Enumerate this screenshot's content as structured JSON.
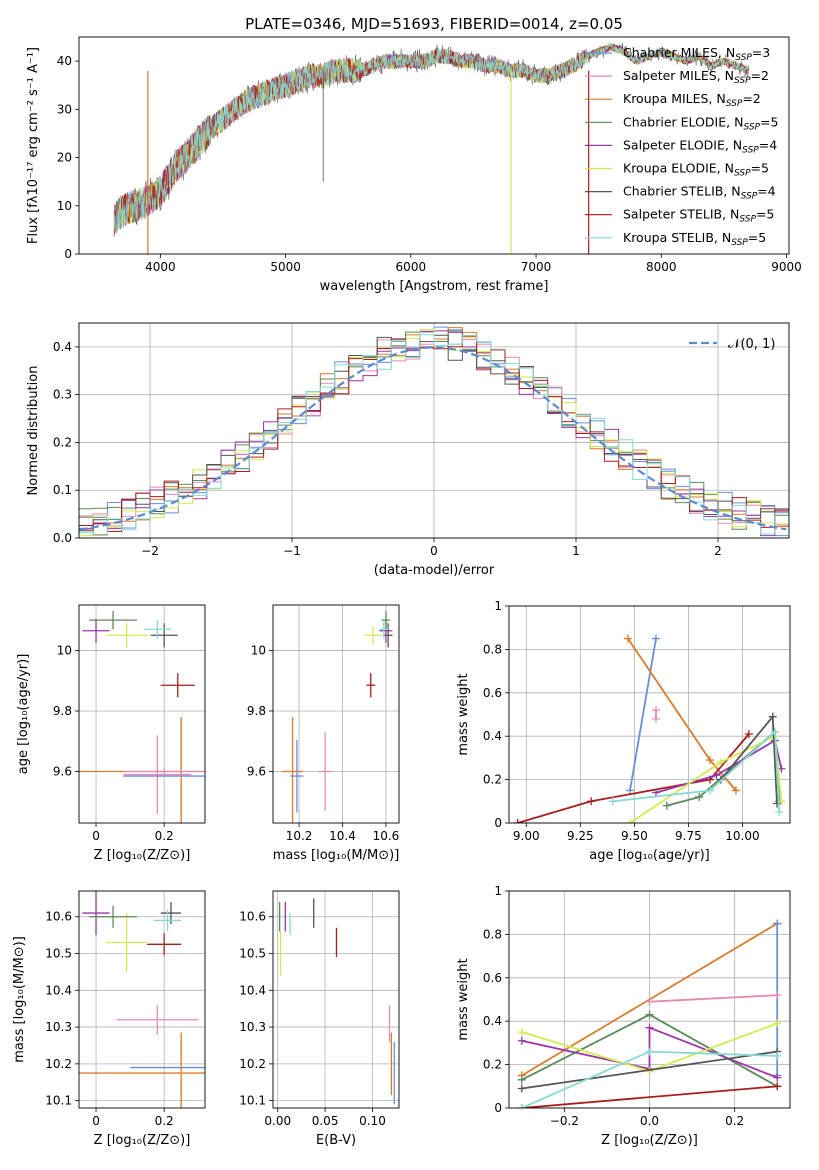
{
  "colors": {
    "chabrier_miles": "#6a8fd8",
    "salpeter_miles": "#e58bb3",
    "kroupa_miles": "#d97b2b",
    "chabrier_elodie": "#5a8a5a",
    "salpeter_elodie": "#9b35a9",
    "kroupa_elodie": "#d3ea4f",
    "chabrier_stelib": "#555555",
    "salpeter_stelib": "#a81d1d",
    "kroupa_stelib": "#86d9d4",
    "normal": "#5b8bd0"
  },
  "chart_data": [
    {
      "id": "spectrum",
      "type": "line",
      "title": "PLATE=0346, MJD=51693, FIBERID=0014, z=0.05",
      "xlabel": "wavelength [Angstrom, rest frame]",
      "ylabel": "Flux [fλ10⁻¹⁷ erg cm⁻² s⁻¹ A⁻¹]",
      "xlim": [
        3350,
        9020
      ],
      "ylim": [
        0,
        45
      ],
      "xticks": [
        4000,
        5000,
        6000,
        7000,
        8000,
        9000
      ],
      "yticks": [
        0,
        10,
        20,
        30,
        40
      ],
      "grid": false,
      "legend": "top-right",
      "x": [
        3630,
        3700,
        3800,
        3900,
        4000,
        4100,
        4200,
        4300,
        4400,
        4500,
        4600,
        4700,
        4800,
        4900,
        5000,
        5100,
        5200,
        5300,
        5400,
        5500,
        5600,
        5700,
        5800,
        5900,
        6000,
        6100,
        6200,
        6300,
        6400,
        6500,
        6600,
        6700,
        6800,
        6900,
        7000,
        7100,
        7200,
        7300,
        7400,
        7500,
        7600,
        7700,
        7800,
        7900,
        8000,
        8100,
        8200,
        8300,
        8400,
        8500,
        8600,
        8700
      ],
      "y": [
        7,
        9,
        10,
        11,
        13,
        17,
        20,
        23,
        26,
        28,
        30,
        32,
        33,
        34,
        35,
        36,
        37,
        37,
        38,
        38,
        38,
        39,
        40,
        40,
        40,
        40,
        41,
        41,
        40,
        40,
        39,
        39,
        38,
        38,
        37,
        37,
        38,
        39,
        41,
        42,
        43,
        42,
        40,
        41,
        42,
        41,
        40,
        41,
        39,
        40,
        39,
        38
      ],
      "series": [
        {
          "name": "Chabrier MILES, N_SSP=3",
          "color_key": "chabrier_miles"
        },
        {
          "name": "Salpeter MILES, N_SSP=2",
          "color_key": "salpeter_miles"
        },
        {
          "name": "Kroupa MILES, N_SSP=2",
          "color_key": "kroupa_miles"
        },
        {
          "name": "Chabrier ELODIE, N_SSP=5",
          "color_key": "chabrier_elodie"
        },
        {
          "name": "Salpeter ELODIE, N_SSP=4",
          "color_key": "salpeter_elodie"
        },
        {
          "name": "Kroupa ELODIE, N_SSP=5",
          "color_key": "kroupa_elodie"
        },
        {
          "name": "Chabrier STELIB, N_SSP=4",
          "color_key": "chabrier_stelib"
        },
        {
          "name": "Salpeter STELIB, N_SSP=5",
          "color_key": "salpeter_stelib"
        },
        {
          "name": "Kroupa STELIB, N_SSP=5",
          "color_key": "kroupa_stelib"
        }
      ],
      "legend_parts": [
        [
          "Chabrier MILES, N",
          "SSP",
          "=3"
        ],
        [
          "Salpeter MILES, N",
          "SSP",
          "=2"
        ],
        [
          "Kroupa MILES, N",
          "SSP",
          "=2"
        ],
        [
          "Chabrier ELODIE, N",
          "SSP",
          "=5"
        ],
        [
          "Salpeter ELODIE, N",
          "SSP",
          "=4"
        ],
        [
          "Kroupa ELODIE, N",
          "SSP",
          "=5"
        ],
        [
          "Chabrier STELIB, N",
          "SSP",
          "=4"
        ],
        [
          "Salpeter STELIB, N",
          "SSP",
          "=5"
        ],
        [
          "Kroupa STELIB, N",
          "SSP",
          "=5"
        ]
      ],
      "drops": [
        {
          "x": 3900,
          "color_key": "kroupa_miles"
        },
        {
          "x": 6800,
          "color_key": "kroupa_elodie"
        },
        {
          "x": 7420,
          "color_key": "salpeter_stelib"
        }
      ]
    },
    {
      "id": "residuals",
      "type": "bar",
      "xlabel": "(data-model)/error",
      "ylabel": "Normed distribution",
      "xlim": [
        -2.5,
        2.5
      ],
      "ylim": [
        0,
        0.45
      ],
      "xticks": [
        -2,
        -1,
        0,
        1,
        2
      ],
      "xtick_labels": [
        "−2",
        "−1",
        "0",
        "1",
        "2"
      ],
      "yticks": [
        0.0,
        0.1,
        0.2,
        0.3,
        0.4
      ],
      "grid": true,
      "legend": "top-right",
      "bin_width": 0.1,
      "bin_start": -2.5,
      "normal_label": "𝒩(0, 1)",
      "series_colors": [
        "chabrier_miles",
        "salpeter_miles",
        "kroupa_miles",
        "chabrier_elodie",
        "salpeter_elodie",
        "kroupa_elodie",
        "chabrier_stelib",
        "salpeter_stelib",
        "kroupa_stelib"
      ]
    },
    {
      "id": "age_vs_Z",
      "type": "scatter",
      "xlabel": "Z [log₁₀(Z/Z⊙)]",
      "ylabel": "age  [log₁₀(age/yr)]",
      "xlim": [
        -0.05,
        0.32
      ],
      "ylim": [
        9.43,
        10.15
      ],
      "xticks": [
        0.0,
        0.2
      ],
      "yticks": [
        9.6,
        9.8,
        10.0
      ],
      "grid": true,
      "points": [
        {
          "x": 0.25,
          "y": 9.6,
          "xerr": 0.3,
          "yerr": 0.18,
          "c": "kroupa_miles"
        },
        {
          "x": 0.2,
          "y": 9.6,
          "xerr": 0.12,
          "yerr": 0.01,
          "c": "salpeter_miles"
        },
        {
          "x": 0.18,
          "y": 9.59,
          "xerr": 0.1,
          "yerr": 0.13,
          "c": "salpeter_miles"
        },
        {
          "x": 0.2,
          "y": 9.585,
          "xerr": 0.12,
          "yerr": 0.0,
          "c": "chabrier_miles"
        },
        {
          "x": 0.24,
          "y": 9.885,
          "xerr": 0.05,
          "yerr": 0.04,
          "c": "salpeter_stelib"
        },
        {
          "x": 0.0,
          "y": 10.065,
          "xerr": 0.04,
          "yerr": 0.04,
          "c": "salpeter_elodie"
        },
        {
          "x": 0.09,
          "y": 10.05,
          "xerr": 0.06,
          "yerr": 0.04,
          "c": "kroupa_elodie"
        },
        {
          "x": 0.05,
          "y": 10.1,
          "xerr": 0.07,
          "yerr": 0.03,
          "c": "chabrier_elodie"
        },
        {
          "x": 0.2,
          "y": 10.05,
          "xerr": 0.04,
          "yerr": 0.04,
          "c": "chabrier_stelib"
        },
        {
          "x": 0.18,
          "y": 10.07,
          "xerr": 0.04,
          "yerr": 0.03,
          "c": "kroupa_stelib"
        }
      ]
    },
    {
      "id": "age_vs_mass",
      "type": "scatter",
      "xlabel": "mass [log₁₀(M/M⊙)]",
      "xlim": [
        10.08,
        10.66
      ],
      "ylim": [
        9.43,
        10.15
      ],
      "xticks": [
        10.2,
        10.4,
        10.6
      ],
      "yticks": [
        9.6,
        9.8,
        10.0
      ],
      "grid": true,
      "points": [
        {
          "x": 10.17,
          "y": 9.6,
          "xerr": 0.05,
          "yerr": 0.18,
          "c": "kroupa_miles"
        },
        {
          "x": 10.32,
          "y": 9.6,
          "xerr": 0.03,
          "yerr": 0.13,
          "c": "salpeter_miles"
        },
        {
          "x": 10.19,
          "y": 9.585,
          "xerr": 0.03,
          "yerr": 0.12,
          "c": "chabrier_miles"
        },
        {
          "x": 10.53,
          "y": 9.885,
          "xerr": 0.02,
          "yerr": 0.04,
          "c": "salpeter_stelib"
        },
        {
          "x": 10.6,
          "y": 10.065,
          "xerr": 0.03,
          "yerr": 0.04,
          "c": "salpeter_elodie"
        },
        {
          "x": 10.54,
          "y": 10.05,
          "xerr": 0.04,
          "yerr": 0.03,
          "c": "kroupa_elodie"
        },
        {
          "x": 10.6,
          "y": 10.1,
          "xerr": 0.02,
          "yerr": 0.03,
          "c": "chabrier_elodie"
        },
        {
          "x": 10.61,
          "y": 10.05,
          "xerr": 0.02,
          "yerr": 0.04,
          "c": "chabrier_stelib"
        },
        {
          "x": 10.59,
          "y": 10.07,
          "xerr": 0.02,
          "yerr": 0.03,
          "c": "kroupa_stelib"
        }
      ]
    },
    {
      "id": "mw_vs_age",
      "type": "line",
      "xlabel": "age  [log₁₀(age/yr)]",
      "ylabel": "mass weight",
      "xlim": [
        8.92,
        10.22
      ],
      "ylim": [
        0,
        1.0
      ],
      "xticks": [
        9.0,
        9.25,
        9.5,
        9.75,
        10.0
      ],
      "xtick_labels": [
        "9.00",
        "9.25",
        "9.50",
        "9.75",
        "10.00"
      ],
      "yticks": [
        0.0,
        0.2,
        0.4,
        0.6,
        0.8,
        1.0
      ],
      "grid": true,
      "series": [
        {
          "c": "chabrier_miles",
          "x": [
            9.48,
            9.6
          ],
          "y": [
            0.15,
            0.85
          ]
        },
        {
          "c": "kroupa_miles",
          "x": [
            9.47,
            9.85,
            9.97
          ],
          "y": [
            0.85,
            0.29,
            0.15
          ]
        },
        {
          "c": "salpeter_miles",
          "x": [
            9.6,
            9.6
          ],
          "y": [
            0.48,
            0.52
          ]
        },
        {
          "c": "salpeter_stelib",
          "x": [
            8.96,
            9.3,
            9.85,
            10.03
          ],
          "y": [
            0.0,
            0.1,
            0.2,
            0.41
          ]
        },
        {
          "c": "chabrier_elodie",
          "x": [
            9.65,
            9.8,
            10.15,
            10.17
          ],
          "y": [
            0.08,
            0.12,
            0.42,
            0.1
          ]
        },
        {
          "c": "salpeter_elodie",
          "x": [
            9.6,
            9.88,
            10.15,
            10.18
          ],
          "y": [
            0.14,
            0.22,
            0.38,
            0.25
          ]
        },
        {
          "c": "kroupa_elodie",
          "x": [
            9.48,
            9.9,
            10.15,
            10.18
          ],
          "y": [
            0.0,
            0.28,
            0.4,
            0.1
          ]
        },
        {
          "c": "chabrier_stelib",
          "x": [
            9.9,
            10.14,
            10.16
          ],
          "y": [
            0.2,
            0.49,
            0.09
          ]
        },
        {
          "c": "kroupa_stelib",
          "x": [
            9.4,
            9.85,
            10.15,
            10.17
          ],
          "y": [
            0.1,
            0.15,
            0.42,
            0.05
          ]
        }
      ]
    },
    {
      "id": "mass_vs_Z",
      "type": "scatter",
      "xlabel": "Z [log₁₀(Z/Z⊙)]",
      "ylabel": "mass [log₁₀(M/M⊙)]",
      "xlim": [
        -0.05,
        0.32
      ],
      "ylim": [
        10.08,
        10.67
      ],
      "xticks": [
        0.0,
        0.2
      ],
      "yticks": [
        10.1,
        10.2,
        10.3,
        10.4,
        10.5,
        10.6
      ],
      "grid": true,
      "points": [
        {
          "x": 0.25,
          "y": 10.175,
          "xerr": 0.3,
          "yerr": 0.11,
          "c": "kroupa_miles"
        },
        {
          "x": 0.22,
          "y": 10.19,
          "xerr": 0.12,
          "yerr": 0.0,
          "c": "chabrier_miles"
        },
        {
          "x": 0.18,
          "y": 10.32,
          "xerr": 0.12,
          "yerr": 0.04,
          "c": "salpeter_miles"
        },
        {
          "x": 0.2,
          "y": 10.525,
          "xerr": 0.05,
          "yerr": 0.03,
          "c": "salpeter_stelib"
        },
        {
          "x": 0.09,
          "y": 10.53,
          "xerr": 0.06,
          "yerr": 0.08,
          "c": "kroupa_elodie"
        },
        {
          "x": 0.0,
          "y": 10.61,
          "xerr": 0.04,
          "yerr": 0.06,
          "c": "salpeter_elodie"
        },
        {
          "x": 0.05,
          "y": 10.6,
          "xerr": 0.07,
          "yerr": 0.03,
          "c": "chabrier_elodie"
        },
        {
          "x": 0.22,
          "y": 10.61,
          "xerr": 0.03,
          "yerr": 0.03,
          "c": "chabrier_stelib"
        },
        {
          "x": 0.21,
          "y": 10.59,
          "xerr": 0.04,
          "yerr": 0.03,
          "c": "kroupa_stelib"
        }
      ]
    },
    {
      "id": "mass_vs_EBV",
      "type": "scatter",
      "xlabel": "E(B-V)",
      "xlim": [
        -0.005,
        0.128
      ],
      "ylim": [
        10.08,
        10.67
      ],
      "xticks": [
        0.0,
        0.05,
        0.1
      ],
      "xtick_labels": [
        "0.00",
        "0.05",
        "0.10"
      ],
      "yticks": [
        10.1,
        10.2,
        10.3,
        10.4,
        10.5,
        10.6
      ],
      "grid": true,
      "points": [
        {
          "x": 0.12,
          "y": 10.2,
          "xerr": 0.0,
          "yerr": 0.085,
          "c": "kroupa_miles"
        },
        {
          "x": 0.123,
          "y": 10.175,
          "xerr": 0.0,
          "yerr": 0.085,
          "c": "chabrier_miles"
        },
        {
          "x": 0.118,
          "y": 10.31,
          "xerr": 0.0,
          "yerr": 0.05,
          "c": "salpeter_miles"
        },
        {
          "x": 0.062,
          "y": 10.53,
          "xerr": 0.0,
          "yerr": 0.04,
          "c": "salpeter_stelib"
        },
        {
          "x": 0.003,
          "y": 10.5,
          "xerr": 0.0,
          "yerr": 0.06,
          "c": "kroupa_elodie"
        },
        {
          "x": 0.008,
          "y": 10.6,
          "xerr": 0.0,
          "yerr": 0.04,
          "c": "salpeter_elodie"
        },
        {
          "x": 0.002,
          "y": 10.6,
          "xerr": 0.0,
          "yerr": 0.04,
          "c": "chabrier_elodie"
        },
        {
          "x": 0.038,
          "y": 10.61,
          "xerr": 0.0,
          "yerr": 0.04,
          "c": "chabrier_stelib"
        },
        {
          "x": 0.013,
          "y": 10.58,
          "xerr": 0.0,
          "yerr": 0.03,
          "c": "kroupa_stelib"
        }
      ]
    },
    {
      "id": "mw_vs_Z",
      "type": "line",
      "xlabel": "Z [log₁₀(Z/Z⊙)]",
      "ylabel": "mass weight",
      "xlim": [
        -0.33,
        0.33
      ],
      "ylim": [
        0,
        1.0
      ],
      "xticks": [
        -0.2,
        0.0,
        0.2
      ],
      "xtick_labels": [
        "−0.2",
        "0.0",
        "0.2"
      ],
      "yticks": [
        0.0,
        0.2,
        0.4,
        0.6,
        0.8,
        1.0
      ],
      "grid": true,
      "series": [
        {
          "c": "kroupa_miles",
          "x": [
            -0.3,
            0.3
          ],
          "y": [
            0.15,
            0.85
          ]
        },
        {
          "c": "chabrier_miles",
          "x": [
            0.3,
            0.3
          ],
          "y": [
            0.15,
            0.85
          ]
        },
        {
          "c": "salpeter_miles",
          "x": [
            0.0,
            0.3
          ],
          "y": [
            0.49,
            0.52
          ]
        },
        {
          "c": "chabrier_elodie",
          "x": [
            -0.3,
            0.0,
            0.3
          ],
          "y": [
            0.13,
            0.43,
            0.1
          ]
        },
        {
          "c": "salpeter_elodie",
          "x": [
            -0.3,
            0.0,
            0.0,
            0.3
          ],
          "y": [
            0.31,
            0.18,
            0.37,
            0.14
          ]
        },
        {
          "c": "kroupa_elodie",
          "x": [
            -0.3,
            0.0,
            0.3
          ],
          "y": [
            0.35,
            0.17,
            0.39
          ]
        },
        {
          "c": "chabrier_stelib",
          "x": [
            -0.3,
            0.3
          ],
          "y": [
            0.09,
            0.26
          ]
        },
        {
          "c": "salpeter_stelib",
          "x": [
            -0.3,
            0.3
          ],
          "y": [
            0.0,
            0.1
          ]
        },
        {
          "c": "kroupa_stelib",
          "x": [
            -0.3,
            0.0,
            0.3
          ],
          "y": [
            0.0,
            0.26,
            0.24
          ]
        }
      ]
    }
  ]
}
